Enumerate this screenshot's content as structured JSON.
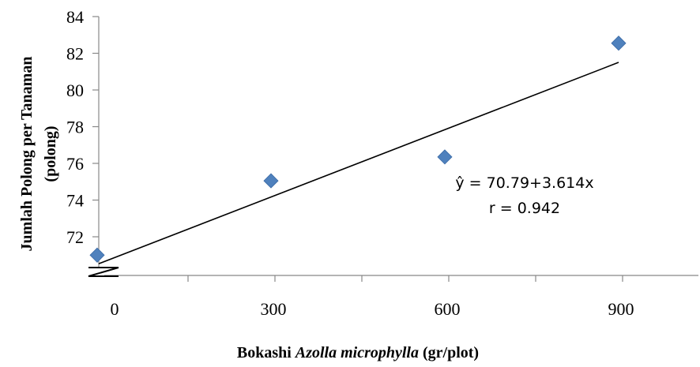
{
  "chart_data": {
    "type": "scatter",
    "title": "",
    "ylabel_line1": "Jumlah Polong per Tanaman",
    "ylabel_line2": "(polong)",
    "xlabel_normal1": "Bokashi ",
    "xlabel_italic": "Azolla microphylla",
    "xlabel_normal2": " (gr/plot)",
    "x_ticks": [
      "0",
      "300",
      "600",
      "900"
    ],
    "y_ticks": [
      "72",
      "74",
      "76",
      "78",
      "80",
      "82",
      "84"
    ],
    "xlim": [
      0,
      900
    ],
    "ylim": [
      70,
      84
    ],
    "axis_break": true,
    "grid": false,
    "series": [
      {
        "color": "#4f81bd",
        "marker": "diamond",
        "x": [
          0,
          300,
          600,
          900
        ],
        "y": [
          71.0,
          75.05,
          76.35,
          82.55
        ]
      }
    ],
    "trendline": {
      "intercept": 70.79,
      "slope": 3.614,
      "x_unit_step": 300,
      "color": "#000000"
    },
    "annotation_equation": "ŷ = 70.79+3.614x",
    "annotation_r": "r = 0.942"
  }
}
